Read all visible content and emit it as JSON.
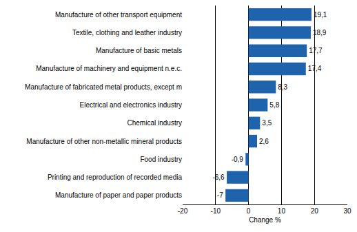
{
  "chart_data": {
    "type": "bar",
    "orientation": "horizontal",
    "categories": [
      "Manufacture of other transport equipment",
      "Textile, clothing and leather industry",
      "Manufacture of basic metals",
      "Manufacture of machinery and equipment n.e.c.",
      "Manufacture of fabricated metal products, except m",
      "Electrical and electronics industry",
      "Chemical industry",
      "Manufacture of other non-metallic mineral products",
      "Food industry",
      "Printing and reproduction of recorded media",
      "Manufacture of paper and paper products"
    ],
    "values": [
      19.1,
      18.9,
      17.7,
      17.4,
      8.3,
      5.8,
      3.5,
      2.6,
      -0.9,
      -6.6,
      -7
    ],
    "value_labels": [
      "19,1",
      "18,9",
      "17,7",
      "17,4",
      "8,3",
      "5,8",
      "3,5",
      "2,6",
      "-0,9",
      "-6,6",
      "-7"
    ],
    "data_labels": true,
    "color": "#1f63ad",
    "x_label": "Change %",
    "xlim": [
      -20,
      30
    ],
    "xticks": [
      -20,
      -10,
      0,
      10,
      20,
      30
    ],
    "grid": true
  }
}
